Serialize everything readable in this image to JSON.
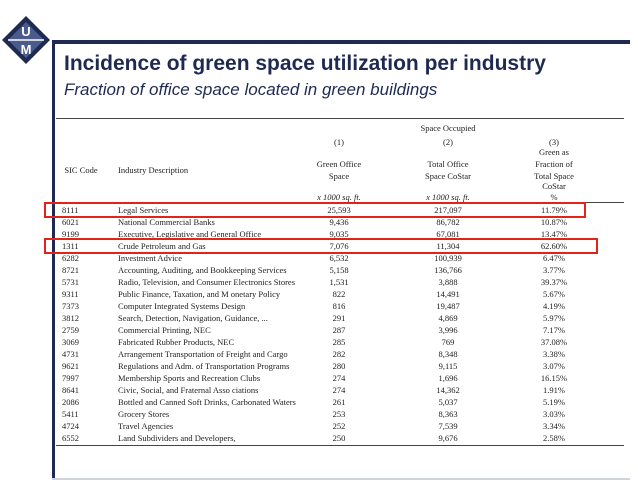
{
  "logo": {
    "letters": [
      "U",
      "M"
    ],
    "brand_color": "#1f2a52",
    "accent_color": "#4a5b8c"
  },
  "slide": {
    "title": "Incidence of green space utilization per industry",
    "subtitle": "Fraction of office space located in green buildings"
  },
  "table": {
    "group_header": "Space Occupied",
    "col_numbers": [
      "(1)",
      "(2)",
      "(3)"
    ],
    "headers": {
      "sic": "SIC Code",
      "desc": "Industry Description",
      "green_l1": "Green Office",
      "green_l2": "Space",
      "total_l1": "Total Office",
      "total_l2": "Space CoStar",
      "frac_l1": "Green as",
      "frac_l2": "Fraction of",
      "frac_l3": "Total Space",
      "frac_l4": "CoStar"
    },
    "units": {
      "green": "x 1000 sq. ft.",
      "total": "x 1000 sq. ft.",
      "frac": "%"
    },
    "rows": [
      {
        "sic": "8111",
        "desc": "Legal Services",
        "green": "25,593",
        "total": "217,097",
        "frac": "11.79%"
      },
      {
        "sic": "6021",
        "desc": "National Commercial Banks",
        "green": "9,436",
        "total": "86,782",
        "frac": "10.87%"
      },
      {
        "sic": "9199",
        "desc": "Executive, Legislative and General Office",
        "green": "9,035",
        "total": "67,081",
        "frac": "13.47%"
      },
      {
        "sic": "1311",
        "desc": "Crude Petroleum and Gas",
        "green": "7,076",
        "total": "11,304",
        "frac": "62.60%"
      },
      {
        "sic": "6282",
        "desc": "Investment Advice",
        "green": "6,532",
        "total": "100,939",
        "frac": "6.47%"
      },
      {
        "sic": "8721",
        "desc": "Accounting, Auditing, and Bookkeeping Services",
        "green": "5,158",
        "total": "136,766",
        "frac": "3.77%"
      },
      {
        "sic": "5731",
        "desc": "Radio, Television, and Consumer Electronics Stores",
        "green": "1,531",
        "total": "3,888",
        "frac": "39.37%"
      },
      {
        "sic": "9311",
        "desc": "Public Finance, Taxation, and M      onetary Policy",
        "green": "822",
        "total": "14,491",
        "frac": "5.67%"
      },
      {
        "sic": "7373",
        "desc": "Computer Integrated Systems Design",
        "green": "816",
        "total": "19,487",
        "frac": "4.19%"
      },
      {
        "sic": "3812",
        "desc": "Search, Detection, Navigation, Guidance, ...",
        "green": "291",
        "total": "4,869",
        "frac": "5.97%"
      },
      {
        "sic": "2759",
        "desc": "Commercial Printing, NEC",
        "green": "287",
        "total": "3,996",
        "frac": "7.17%"
      },
      {
        "sic": "3069",
        "desc": "Fabricated Rubber Products, NEC",
        "green": "285",
        "total": "769",
        "frac": "37.08%"
      },
      {
        "sic": "4731",
        "desc": "Arrangement Transportation of Freight and Cargo",
        "green": "282",
        "total": "8,348",
        "frac": "3.38%"
      },
      {
        "sic": "9621",
        "desc": "Regulations and Adm. of Transportation Programs",
        "green": "280",
        "total": "9,115",
        "frac": "3.07%"
      },
      {
        "sic": "7997",
        "desc": "Membership Sports and Recreation Clubs",
        "green": "274",
        "total": "1,696",
        "frac": "16.15%"
      },
      {
        "sic": "8641",
        "desc": "Civic, Social, and Fraternal Asso      ciations",
        "green": "274",
        "total": "14,362",
        "frac": "1.91%"
      },
      {
        "sic": "2086",
        "desc": "Bottled and Canned Soft Drinks, Carbonated Waters",
        "green": "261",
        "total": "5,037",
        "frac": "5.19%"
      },
      {
        "sic": "5411",
        "desc": "Grocery Stores",
        "green": "253",
        "total": "8,363",
        "frac": "3.03%"
      },
      {
        "sic": "4724",
        "desc": "Travel Agencies",
        "green": "252",
        "total": "7,539",
        "frac": "3.34%"
      },
      {
        "sic": "6552",
        "desc": "Land Subdividers and Developers,",
        "green": "250",
        "total": "9,676",
        "frac": "2.58%"
      }
    ],
    "highlight_color": "#e2231a"
  }
}
